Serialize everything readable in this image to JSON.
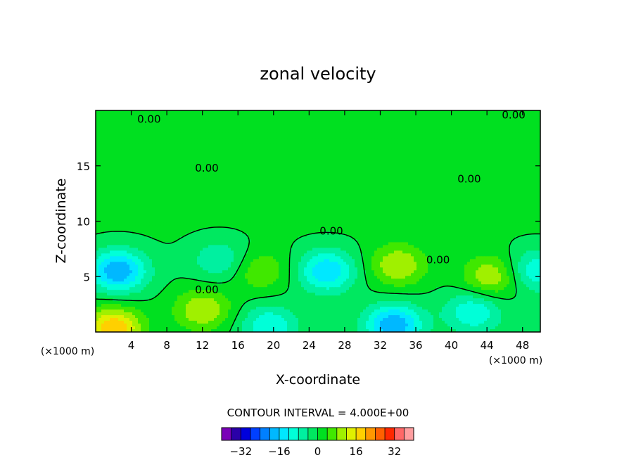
{
  "chart_data": {
    "type": "contour",
    "title": "zonal velocity",
    "xlabel": "X-coordinate",
    "ylabel": "Z-coordinate",
    "x_unit": "(×1000 m)",
    "y_unit": "(×1000 m)",
    "xlim": [
      0,
      50
    ],
    "ylim": [
      0,
      20
    ],
    "x_ticks": [
      4,
      8,
      12,
      16,
      20,
      24,
      28,
      32,
      36,
      40,
      44,
      48
    ],
    "y_ticks": [
      5,
      10,
      15
    ],
    "contour_interval_text": "CONTOUR INTERVAL = 4.000E+00",
    "zero_contour_label": "0.00",
    "zero_contour_labels": [
      {
        "x": 6,
        "y": 19.2
      },
      {
        "x": 12.5,
        "y": 14.8
      },
      {
        "x": 26.5,
        "y": 9.1
      },
      {
        "x": 42,
        "y": 13.8
      },
      {
        "x": 47,
        "y": 19.6
      },
      {
        "x": 38.5,
        "y": 6.5
      },
      {
        "x": 12.5,
        "y": 3.8
      }
    ],
    "colorbar": {
      "levels": [
        -36,
        -32,
        -28,
        -24,
        -20,
        -16,
        -12,
        -8,
        -4,
        0,
        4,
        8,
        12,
        16,
        20,
        24,
        28,
        32,
        36
      ],
      "tick_labels": [
        "-32",
        "-16",
        "0",
        "16",
        "32"
      ],
      "tick_values": [
        -32,
        -16,
        0,
        16,
        32
      ],
      "colors": [
        "#7a00b8",
        "#2a00a8",
        "#0000dc",
        "#0040ff",
        "#0080ff",
        "#00b8ff",
        "#00e8ff",
        "#00ffd8",
        "#00f0a0",
        "#00e860",
        "#00e020",
        "#40e800",
        "#a0f000",
        "#e0f000",
        "#ffd000",
        "#ff9800",
        "#ff6000",
        "#ff2800",
        "#ff6868",
        "#ff9ea0"
      ]
    },
    "features": [
      {
        "x": 2.5,
        "y": 5.5,
        "value": -20
      },
      {
        "x": 26,
        "y": 5.5,
        "value": -16
      },
      {
        "x": 14,
        "y": 6.5,
        "value": -8
      },
      {
        "x": 33.5,
        "y": 0.6,
        "value": -20
      },
      {
        "x": 19.5,
        "y": 0.5,
        "value": -12
      },
      {
        "x": 42.5,
        "y": 1.8,
        "value": -12
      },
      {
        "x": 49.5,
        "y": 5.5,
        "value": -12
      },
      {
        "x": 2,
        "y": 0.3,
        "value": 20
      },
      {
        "x": 34,
        "y": 6,
        "value": 12
      },
      {
        "x": 44.5,
        "y": 5,
        "value": 12
      },
      {
        "x": 12,
        "y": 2,
        "value": 12
      },
      {
        "x": 18.5,
        "y": 5.5,
        "value": 8
      }
    ]
  }
}
